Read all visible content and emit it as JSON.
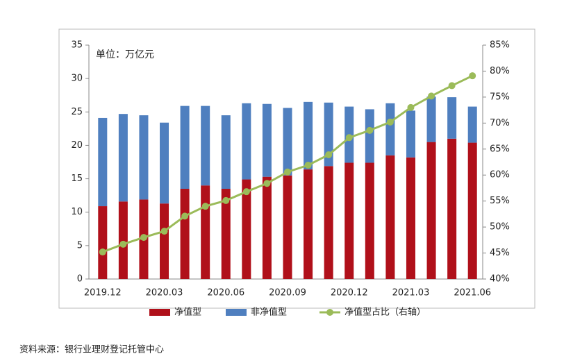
{
  "chart_data": {
    "type": "stacked_bar_line",
    "annotation": "单位：万亿元",
    "source": "资料来源：银行业理财登记托管中心",
    "categories": [
      "2019.12",
      null,
      null,
      "2020.03",
      null,
      null,
      "2020.06",
      null,
      null,
      "2020.09",
      null,
      null,
      "2020.12",
      null,
      null,
      "2021.03",
      null,
      null,
      "2021.06"
    ],
    "series": [
      {
        "name": "净值型",
        "color": "#b0101a",
        "values": [
          10.9,
          11.6,
          11.9,
          11.3,
          13.5,
          14.0,
          13.5,
          14.9,
          15.3,
          15.5,
          16.4,
          16.9,
          17.4,
          17.4,
          18.5,
          18.2,
          20.5,
          21.0,
          20.4
        ]
      },
      {
        "name": "非净值型",
        "color": "#4f7fbf",
        "values": [
          13.2,
          13.1,
          12.6,
          12.1,
          12.4,
          11.9,
          11.0,
          11.4,
          10.9,
          10.1,
          10.1,
          9.5,
          8.4,
          8.0,
          7.8,
          7.0,
          6.8,
          6.2,
          5.4
        ]
      },
      {
        "name": "净值型占比（右轴）",
        "color": "#9bbb59",
        "axis": "y2",
        "values": [
          45.2,
          46.7,
          48.0,
          49.2,
          52.1,
          54.0,
          55.1,
          56.8,
          58.4,
          60.6,
          61.9,
          63.9,
          67.2,
          68.6,
          70.2,
          73.0,
          75.2,
          77.2,
          79.1
        ]
      }
    ],
    "ylim": [
      0,
      35
    ],
    "yticks": [
      0,
      5,
      10,
      15,
      20,
      25,
      30,
      35
    ],
    "y2lim": [
      40,
      85
    ],
    "y2ticks": [
      {
        "value": 40,
        "label": "40%"
      },
      {
        "value": 45,
        "label": "45%"
      },
      {
        "value": 50,
        "label": "50%"
      },
      {
        "value": 55,
        "label": "55%"
      },
      {
        "value": 60,
        "label": "60%"
      },
      {
        "value": 65,
        "label": "65%"
      },
      {
        "value": 70,
        "label": "70%"
      },
      {
        "value": 75,
        "label": "75%"
      },
      {
        "value": 80,
        "label": "80%"
      },
      {
        "value": 85,
        "label": "85%"
      }
    ],
    "grid": false
  }
}
